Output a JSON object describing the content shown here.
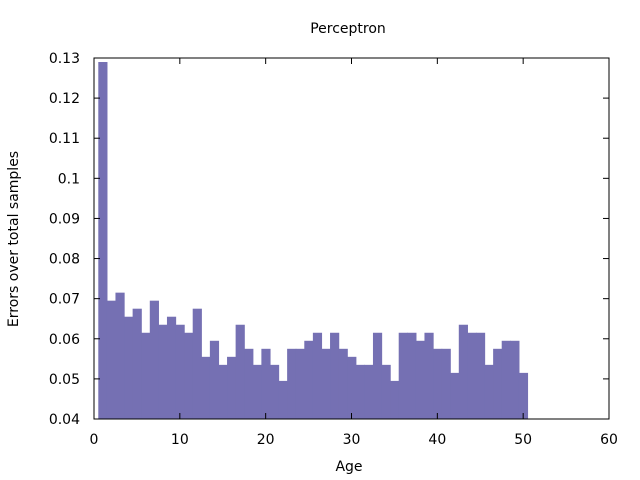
{
  "chart_data": {
    "type": "bar",
    "title": "Perceptron",
    "xlabel": "Age",
    "ylabel": "Errors over total samples",
    "xlim": [
      0,
      60
    ],
    "ylim": [
      0.04,
      0.13
    ],
    "xticks": [
      0,
      10,
      20,
      30,
      40,
      50,
      60
    ],
    "xtick_labels": [
      "0",
      "10",
      "20",
      "30",
      "40",
      "50",
      "60"
    ],
    "yticks": [
      0.04,
      0.05,
      0.06,
      0.07,
      0.08,
      0.09,
      0.1,
      0.11,
      0.12,
      0.13
    ],
    "ytick_labels": [
      "0.04",
      "0.05",
      "0.06",
      "0.07",
      "0.08",
      "0.09",
      "0.1",
      "0.11",
      "0.12",
      "0.13"
    ],
    "grid": false,
    "bar_color": "#7570b3",
    "bar_width": 1,
    "x": [
      1,
      2,
      3,
      4,
      5,
      6,
      7,
      8,
      9,
      10,
      11,
      12,
      13,
      14,
      15,
      16,
      17,
      18,
      19,
      20,
      21,
      22,
      23,
      24,
      25,
      26,
      27,
      28,
      29,
      30,
      31,
      32,
      33,
      34,
      35,
      36,
      37,
      38,
      39,
      40,
      41,
      42,
      43,
      44,
      45,
      46,
      47,
      48,
      49,
      50
    ],
    "values": [
      0.129,
      0.0695,
      0.0715,
      0.0655,
      0.0675,
      0.0615,
      0.0695,
      0.0635,
      0.0655,
      0.0635,
      0.0615,
      0.0675,
      0.0555,
      0.0595,
      0.0535,
      0.0555,
      0.0635,
      0.0575,
      0.0535,
      0.0575,
      0.0535,
      0.0495,
      0.0575,
      0.0575,
      0.0595,
      0.0615,
      0.0575,
      0.0615,
      0.0575,
      0.0555,
      0.0535,
      0.0535,
      0.0615,
      0.0535,
      0.0495,
      0.0615,
      0.0615,
      0.0595,
      0.0615,
      0.0575,
      0.0575,
      0.0515,
      0.0635,
      0.0615,
      0.0615,
      0.0535,
      0.0575,
      0.0595,
      0.0595,
      0.0515
    ]
  }
}
